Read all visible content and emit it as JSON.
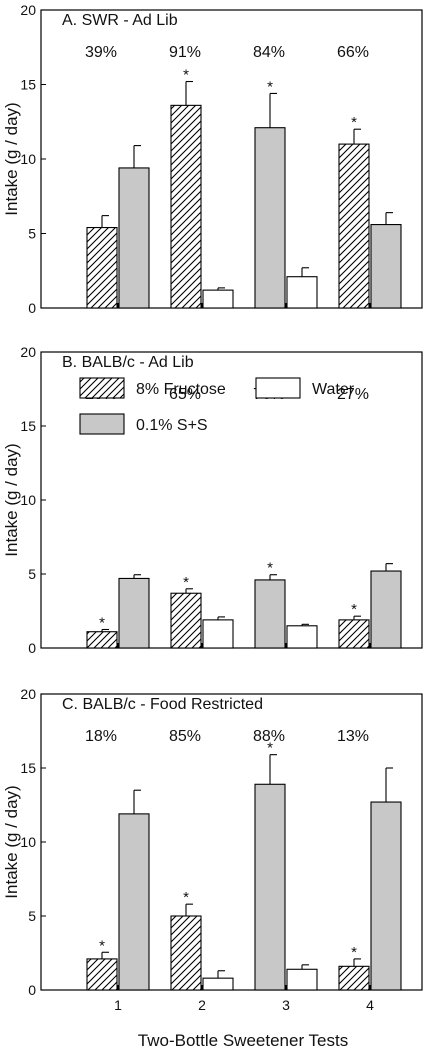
{
  "figure": {
    "xlabel": "Two-Bottle Sweetener Tests",
    "ylabel": "Intake (g / day)"
  },
  "legend": {
    "items": [
      {
        "label": "8% Fructose",
        "pattern": "hatched"
      },
      {
        "label": "Water",
        "pattern": "white"
      },
      {
        "label": "0.1% S+S",
        "pattern": "gray"
      }
    ]
  },
  "colors": {
    "gray": "#c8c8c8",
    "white": "#ffffff",
    "stroke": "#000000"
  },
  "chart_data": [
    {
      "type": "bar",
      "title": "A. SWR - Ad Lib",
      "categories": [
        "1",
        "2",
        "3",
        "4"
      ],
      "ylim": [
        0,
        20
      ],
      "yticks": [
        "0",
        "5",
        "10",
        "15",
        "20"
      ],
      "percentages": [
        "39%",
        "91%",
        "84%",
        "66%"
      ],
      "bars": [
        [
          {
            "pattern": "hatched",
            "value": 5.4,
            "err": 0.8,
            "sig": false
          },
          {
            "pattern": "gray",
            "value": 9.4,
            "err": 1.5,
            "sig": false
          }
        ],
        [
          {
            "pattern": "hatched",
            "value": 13.6,
            "err": 1.6,
            "sig": true
          },
          {
            "pattern": "white",
            "value": 1.2,
            "err": 0.15,
            "sig": false
          }
        ],
        [
          {
            "pattern": "gray",
            "value": 12.1,
            "err": 2.3,
            "sig": true
          },
          {
            "pattern": "white",
            "value": 2.1,
            "err": 0.6,
            "sig": false
          }
        ],
        [
          {
            "pattern": "hatched",
            "value": 11.0,
            "err": 1.0,
            "sig": true
          },
          {
            "pattern": "gray",
            "value": 5.6,
            "err": 0.8,
            "sig": false
          }
        ]
      ]
    },
    {
      "type": "bar",
      "title": "B. BALB/c - Ad Lib",
      "categories": [
        "1",
        "2",
        "3",
        "4"
      ],
      "ylim": [
        0,
        20
      ],
      "yticks": [
        "0",
        "5",
        "10",
        "15",
        "20"
      ],
      "percentages": [
        "20%",
        "65%",
        "76%",
        "27%"
      ],
      "bars": [
        [
          {
            "pattern": "hatched",
            "value": 1.1,
            "err": 0.15,
            "sig": true
          },
          {
            "pattern": "gray",
            "value": 4.7,
            "err": 0.25,
            "sig": false
          }
        ],
        [
          {
            "pattern": "hatched",
            "value": 3.7,
            "err": 0.3,
            "sig": true
          },
          {
            "pattern": "white",
            "value": 1.9,
            "err": 0.2,
            "sig": false
          }
        ],
        [
          {
            "pattern": "gray",
            "value": 4.6,
            "err": 0.35,
            "sig": true
          },
          {
            "pattern": "white",
            "value": 1.5,
            "err": 0.1,
            "sig": false
          }
        ],
        [
          {
            "pattern": "hatched",
            "value": 1.9,
            "err": 0.25,
            "sig": true
          },
          {
            "pattern": "gray",
            "value": 5.2,
            "err": 0.5,
            "sig": false
          }
        ]
      ]
    },
    {
      "type": "bar",
      "title": "C. BALB/c - Food Restricted",
      "categories": [
        "1",
        "2",
        "3",
        "4"
      ],
      "ylim": [
        0,
        20
      ],
      "yticks": [
        "0",
        "5",
        "10",
        "15",
        "20"
      ],
      "percentages": [
        "18%",
        "85%",
        "88%",
        "13%"
      ],
      "bars": [
        [
          {
            "pattern": "hatched",
            "value": 2.1,
            "err": 0.45,
            "sig": true
          },
          {
            "pattern": "gray",
            "value": 11.9,
            "err": 1.6,
            "sig": false
          }
        ],
        [
          {
            "pattern": "hatched",
            "value": 5.0,
            "err": 0.8,
            "sig": true
          },
          {
            "pattern": "white",
            "value": 0.8,
            "err": 0.5,
            "sig": false
          }
        ],
        [
          {
            "pattern": "gray",
            "value": 13.9,
            "err": 2.0,
            "sig": true
          },
          {
            "pattern": "white",
            "value": 1.4,
            "err": 0.3,
            "sig": false
          }
        ],
        [
          {
            "pattern": "hatched",
            "value": 1.6,
            "err": 0.5,
            "sig": true
          },
          {
            "pattern": "gray",
            "value": 12.7,
            "err": 2.3,
            "sig": false
          }
        ]
      ]
    }
  ]
}
